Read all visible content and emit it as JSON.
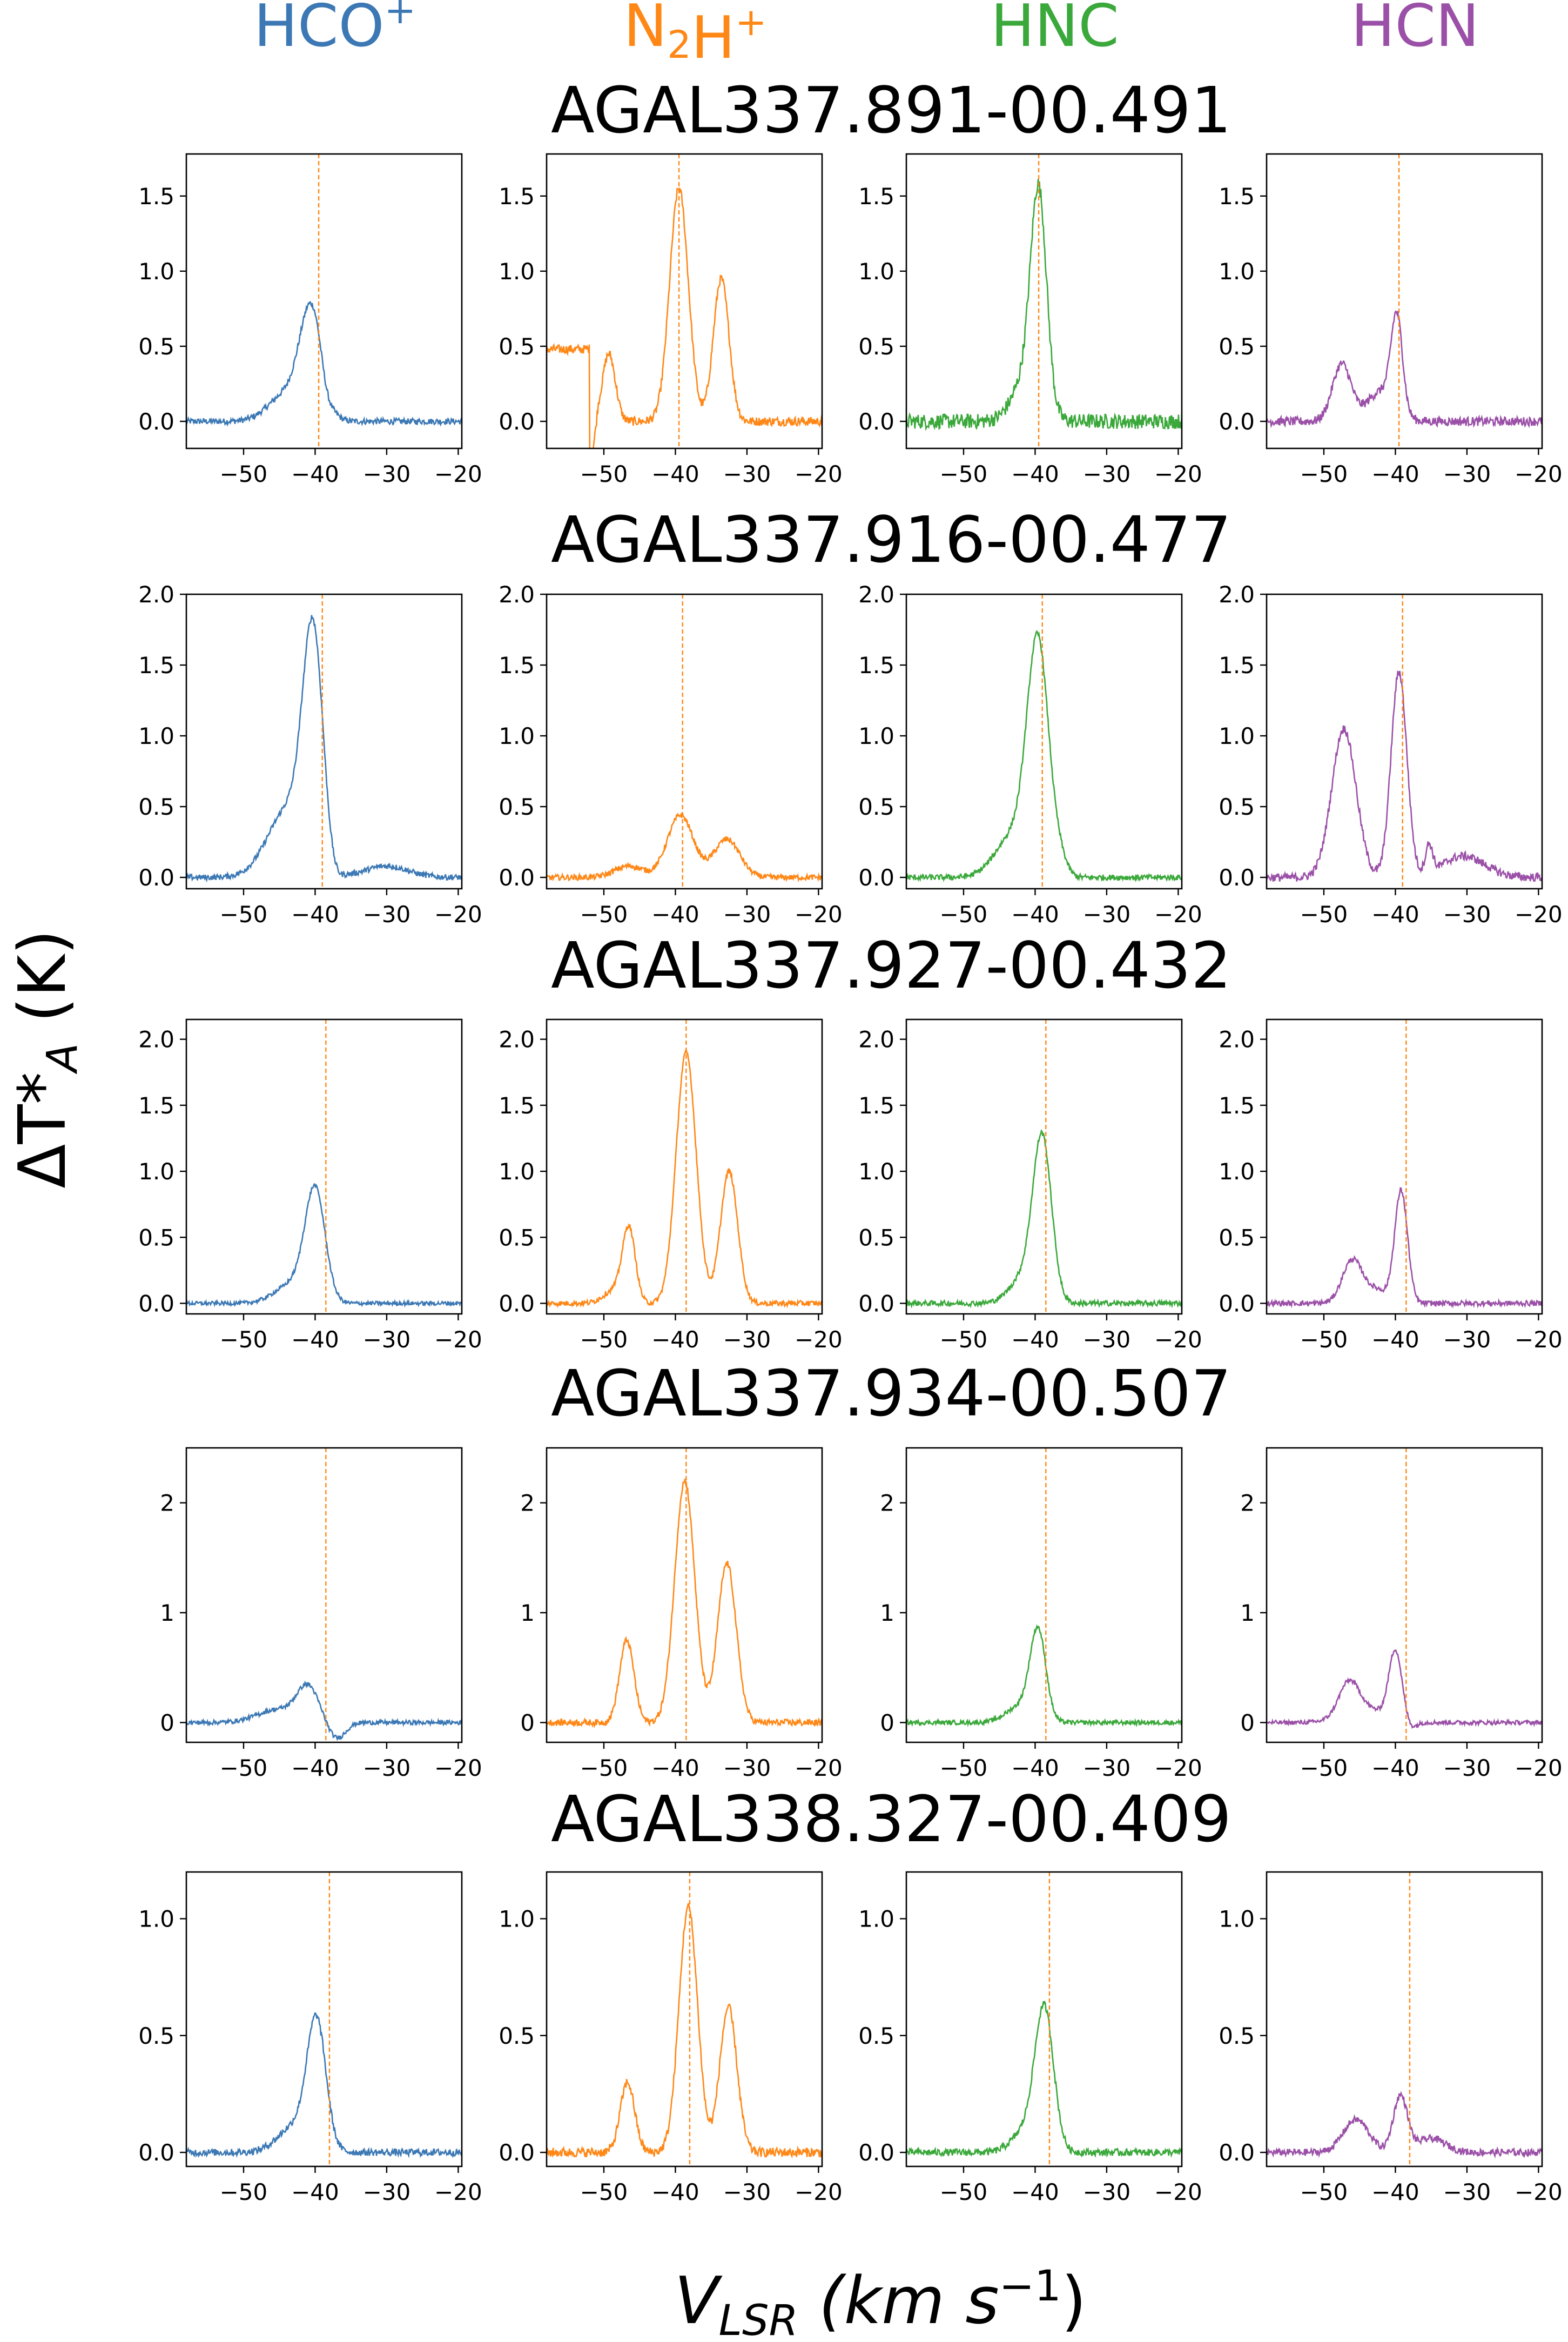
{
  "molecules": [
    {
      "html": "HCO<sup>+</sup>",
      "color": "#3b78b4"
    },
    {
      "html": "N<sub>2</sub>H<sup>+</sup>",
      "color": "#ff8716"
    },
    {
      "html": "HNC",
      "color": "#3aa83a"
    },
    {
      "html": "HCN",
      "color": "#9b50a8"
    }
  ],
  "axes": {
    "ylabel": "ΔT*_A (K)",
    "xlabel": "V_LSR (km s^-1)",
    "xlim": [
      -58,
      -19.5
    ],
    "xticks": [
      -50,
      -40,
      -30,
      -20
    ],
    "vline_color": "#ff8716"
  },
  "chart_data": [
    {
      "type": "line",
      "title": "AGAL337.891-00.491",
      "ylim": [
        -0.18,
        1.78
      ],
      "yticks": [
        0.0,
        0.5,
        1.0,
        1.5
      ],
      "ytick_labels": [
        "0.0",
        "0.5",
        "1.0",
        "1.5"
      ],
      "vlsr": -39.5,
      "series": [
        {
          "molecule": "HCO+",
          "baseline": 0,
          "noise": 0.02,
          "components": [
            {
              "c": -40.5,
              "a": 0.72,
              "w": 1.6
            },
            {
              "c": -44,
              "a": 0.18,
              "w": 2.5
            }
          ],
          "abs": [
            {
              "c": -38.5,
              "a": 0.1,
              "w": 0.8
            }
          ]
        },
        {
          "molecule": "N2H+",
          "baseline": 0,
          "noise": 0.03,
          "components": [
            {
              "c": -49.3,
              "a": 0.45,
              "w": 0.9
            },
            {
              "c": -39.5,
              "a": 1.55,
              "w": 1.3
            },
            {
              "c": -33.6,
              "a": 0.95,
              "w": 1.1
            }
          ],
          "step": {
            "start": -58,
            "end": -52,
            "value": 0.48
          }
        },
        {
          "molecule": "HNC",
          "baseline": 0,
          "noise": 0.05,
          "components": [
            {
              "c": -39.5,
              "a": 1.35,
              "w": 1.1
            },
            {
              "c": -41,
              "a": 0.3,
              "w": 2.0
            }
          ]
        },
        {
          "molecule": "HCN",
          "baseline": 0,
          "noise": 0.03,
          "components": [
            {
              "c": -47.5,
              "a": 0.38,
              "w": 1.3
            },
            {
              "c": -39.8,
              "a": 0.62,
              "w": 0.8
            },
            {
              "c": -42,
              "a": 0.2,
              "w": 2.0
            }
          ]
        }
      ]
    },
    {
      "type": "line",
      "title": "AGAL337.916-00.477",
      "ylim": [
        -0.08,
        2.0
      ],
      "yticks": [
        0.0,
        0.5,
        1.0,
        1.5,
        2.0
      ],
      "ytick_labels": [
        "0.0",
        "0.5",
        "1.0",
        "1.5",
        "2.0"
      ],
      "vlsr": -39.0,
      "series": [
        {
          "molecule": "HCO+",
          "baseline": 0,
          "noise": 0.02,
          "components": [
            {
              "c": -40.3,
              "a": 1.55,
              "w": 1.4
            },
            {
              "c": -43.5,
              "a": 0.5,
              "w": 3.0
            },
            {
              "c": -30,
              "a": 0.08,
              "w": 3.0
            }
          ],
          "abs": [
            {
              "c": -37.5,
              "a": 0.08,
              "w": 1.0
            }
          ]
        },
        {
          "molecule": "N2H+",
          "baseline": 0,
          "noise": 0.02,
          "components": [
            {
              "c": -46.5,
              "a": 0.08,
              "w": 2.0
            },
            {
              "c": -39.3,
              "a": 0.44,
              "w": 1.8
            },
            {
              "c": -32.8,
              "a": 0.27,
              "w": 1.8
            }
          ]
        },
        {
          "molecule": "HNC",
          "baseline": 0,
          "noise": 0.02,
          "components": [
            {
              "c": -39.6,
              "a": 1.6,
              "w": 1.5
            },
            {
              "c": -43,
              "a": 0.3,
              "w": 2.5
            },
            {
              "c": -36.5,
              "a": 0.1,
              "w": 1.0
            }
          ]
        },
        {
          "molecule": "HCN",
          "baseline": 0,
          "noise": 0.03,
          "components": [
            {
              "c": -47.2,
              "a": 1.05,
              "w": 1.7
            },
            {
              "c": -39.5,
              "a": 1.45,
              "w": 1.1
            },
            {
              "c": -35.3,
              "a": 0.2,
              "w": 0.5
            },
            {
              "c": -30.5,
              "a": 0.15,
              "w": 3.0
            }
          ]
        }
      ]
    },
    {
      "type": "line",
      "title": "AGAL337.927-00.432",
      "ylim": [
        -0.08,
        2.15
      ],
      "yticks": [
        0.0,
        0.5,
        1.0,
        1.5,
        2.0
      ],
      "ytick_labels": [
        "0.0",
        "0.5",
        "1.0",
        "1.5",
        "2.0"
      ],
      "vlsr": -38.5,
      "series": [
        {
          "molecule": "HCO+",
          "baseline": 0,
          "noise": 0.015,
          "components": [
            {
              "c": -40.0,
              "a": 0.82,
              "w": 1.4
            },
            {
              "c": -43,
              "a": 0.15,
              "w": 2.5
            }
          ]
        },
        {
          "molecule": "N2H+",
          "baseline": 0,
          "noise": 0.02,
          "components": [
            {
              "c": -46.5,
              "a": 0.55,
              "w": 0.9
            },
            {
              "c": -38.5,
              "a": 1.9,
              "w": 1.4
            },
            {
              "c": -32.5,
              "a": 1.0,
              "w": 1.2
            },
            {
              "c": -48.5,
              "a": 0.1,
              "w": 1.5
            }
          ]
        },
        {
          "molecule": "HNC",
          "baseline": 0,
          "noise": 0.02,
          "components": [
            {
              "c": -39.0,
              "a": 1.2,
              "w": 1.3
            },
            {
              "c": -41.5,
              "a": 0.2,
              "w": 2.0
            }
          ]
        },
        {
          "molecule": "HCN",
          "baseline": 0,
          "noise": 0.02,
          "components": [
            {
              "c": -46.0,
              "a": 0.33,
              "w": 1.4
            },
            {
              "c": -39.2,
              "a": 0.85,
              "w": 0.9
            },
            {
              "c": -42.5,
              "a": 0.1,
              "w": 1.5
            }
          ]
        }
      ]
    },
    {
      "type": "line",
      "title": "AGAL337.934-00.507",
      "ylim": [
        -0.18,
        2.5
      ],
      "yticks": [
        0,
        1,
        2
      ],
      "ytick_labels": [
        "0",
        "1",
        "2"
      ],
      "vlsr": -38.5,
      "series": [
        {
          "molecule": "HCO+",
          "baseline": 0,
          "noise": 0.02,
          "components": [
            {
              "c": -41,
              "a": 0.3,
              "w": 1.5
            },
            {
              "c": -45,
              "a": 0.12,
              "w": 3.0
            }
          ],
          "abs": [
            {
              "c": -37,
              "a": 0.15,
              "w": 1.2
            }
          ]
        },
        {
          "molecule": "N2H+",
          "baseline": 0,
          "noise": 0.03,
          "components": [
            {
              "c": -46.8,
              "a": 0.75,
              "w": 1.0
            },
            {
              "c": -38.7,
              "a": 2.2,
              "w": 1.4
            },
            {
              "c": -32.8,
              "a": 1.45,
              "w": 1.3
            }
          ]
        },
        {
          "molecule": "HNC",
          "baseline": 0,
          "noise": 0.02,
          "components": [
            {
              "c": -39.6,
              "a": 0.8,
              "w": 1.1
            },
            {
              "c": -42,
              "a": 0.15,
              "w": 2.0
            }
          ]
        },
        {
          "molecule": "HCN",
          "baseline": 0,
          "noise": 0.02,
          "components": [
            {
              "c": -46.5,
              "a": 0.3,
              "w": 1.4
            },
            {
              "c": -40,
              "a": 0.62,
              "w": 0.9
            },
            {
              "c": -44,
              "a": 0.12,
              "w": 3.0
            }
          ],
          "abs": [
            {
              "c": -37.8,
              "a": 0.06,
              "w": 0.8
            }
          ]
        }
      ]
    },
    {
      "type": "line",
      "title": "AGAL338.327-00.409",
      "ylim": [
        -0.06,
        1.2
      ],
      "yticks": [
        0.0,
        0.5,
        1.0
      ],
      "ytick_labels": [
        "0.0",
        "0.5",
        "1.0"
      ],
      "vlsr": -38.0,
      "series": [
        {
          "molecule": "HCO+",
          "baseline": 0,
          "noise": 0.015,
          "components": [
            {
              "c": -39.8,
              "a": 0.52,
              "w": 1.3
            },
            {
              "c": -42.5,
              "a": 0.12,
              "w": 2.5
            }
          ]
        },
        {
          "molecule": "N2H+",
          "baseline": 0,
          "noise": 0.02,
          "components": [
            {
              "c": -46.7,
              "a": 0.3,
              "w": 1.0
            },
            {
              "c": -38.2,
              "a": 1.05,
              "w": 1.3
            },
            {
              "c": -32.6,
              "a": 0.62,
              "w": 1.2
            }
          ]
        },
        {
          "molecule": "HNC",
          "baseline": 0,
          "noise": 0.015,
          "components": [
            {
              "c": -38.7,
              "a": 0.58,
              "w": 1.3
            },
            {
              "c": -41,
              "a": 0.1,
              "w": 2.0
            }
          ]
        },
        {
          "molecule": "HCN",
          "baseline": 0,
          "noise": 0.015,
          "components": [
            {
              "c": -45.5,
              "a": 0.14,
              "w": 1.8
            },
            {
              "c": -39.3,
              "a": 0.24,
              "w": 1.0
            },
            {
              "c": -35,
              "a": 0.06,
              "w": 2.0
            }
          ]
        }
      ]
    }
  ]
}
